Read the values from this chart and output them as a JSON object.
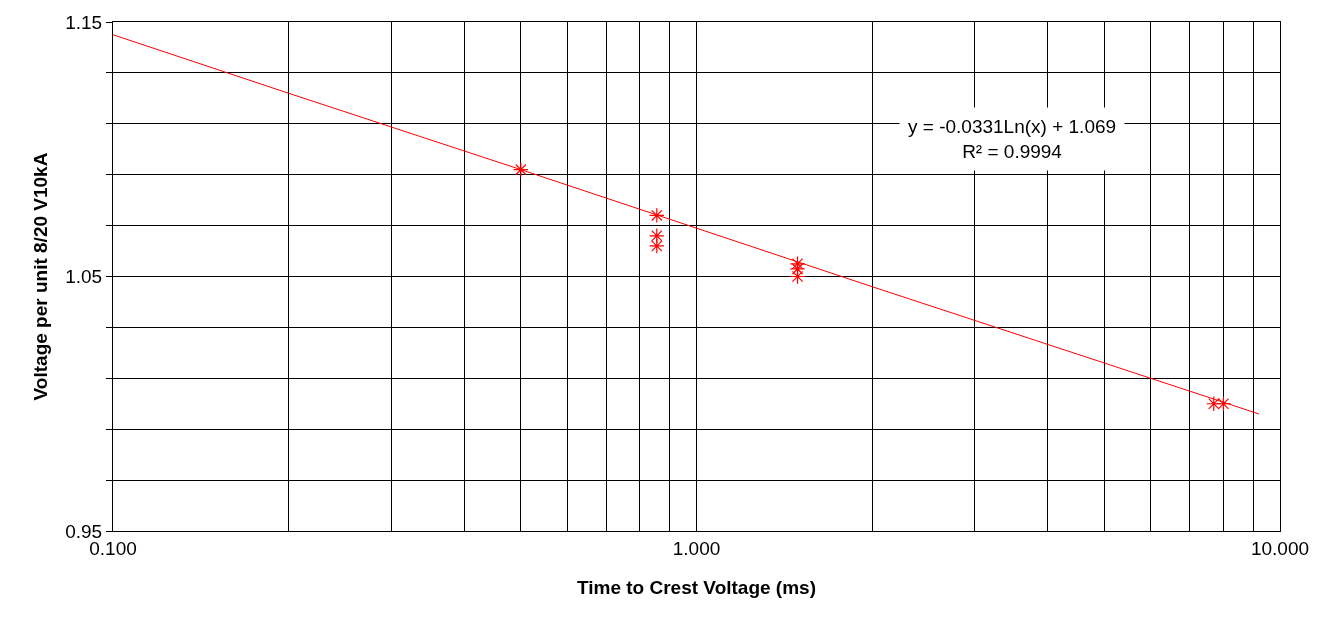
{
  "chart_data": {
    "type": "scatter",
    "xlabel": "Time to Crest Voltage (ms)",
    "ylabel": "Voltage per unit 8/20 V10kA",
    "log": "x",
    "grid": true,
    "xlim": [
      0.1,
      10
    ],
    "ylim": [
      0.95,
      1.15
    ],
    "xticks": [
      {
        "value": 0.1,
        "label": "0.100"
      },
      {
        "value": 0.2,
        "label": null
      },
      {
        "value": 0.3,
        "label": null
      },
      {
        "value": 0.4,
        "label": null
      },
      {
        "value": 0.5,
        "label": null
      },
      {
        "value": 0.6,
        "label": null
      },
      {
        "value": 0.7,
        "label": null
      },
      {
        "value": 0.8,
        "label": null
      },
      {
        "value": 0.9,
        "label": null
      },
      {
        "value": 1,
        "label": "1.000"
      },
      {
        "value": 2,
        "label": null
      },
      {
        "value": 3,
        "label": null
      },
      {
        "value": 4,
        "label": null
      },
      {
        "value": 5,
        "label": null
      },
      {
        "value": 6,
        "label": null
      },
      {
        "value": 7,
        "label": null
      },
      {
        "value": 8,
        "label": null
      },
      {
        "value": 9,
        "label": null
      },
      {
        "value": 10,
        "label": "10.000"
      }
    ],
    "yticks": [
      0.95,
      {
        "value": 0.97,
        "label": null
      },
      {
        "value": 0.99,
        "label": null
      },
      {
        "value": 1.01,
        "label": null
      },
      {
        "value": 1.03,
        "label": null
      },
      1.05,
      {
        "value": 1.07,
        "label": null
      },
      {
        "value": 1.09,
        "label": null
      },
      {
        "value": 1.11,
        "label": null
      },
      {
        "value": 1.13,
        "label": null
      },
      1.15
    ],
    "series": [
      {
        "color": "#ff0000",
        "marker": "cross",
        "x": [
          0.5,
          0.855,
          0.855,
          0.855,
          1.49,
          1.49,
          1.49,
          7.7,
          8.0
        ],
        "values": [
          1.092,
          1.074,
          1.066,
          1.062,
          1.055,
          1.053,
          1.05,
          1.0,
          1.0
        ]
      },
      {
        "type": "line",
        "color": "#ff0000",
        "x": [
          0.1,
          0.2,
          0.5,
          1,
          2,
          5,
          9.2
        ],
        "values": [
          1.145,
          1.122,
          1.092,
          1.069,
          1.046,
          1.016,
          0.996
        ]
      }
    ],
    "annotations": [
      "y = -0.0331Ln(x) + 1.069\nR² = 0.9994"
    ]
  }
}
